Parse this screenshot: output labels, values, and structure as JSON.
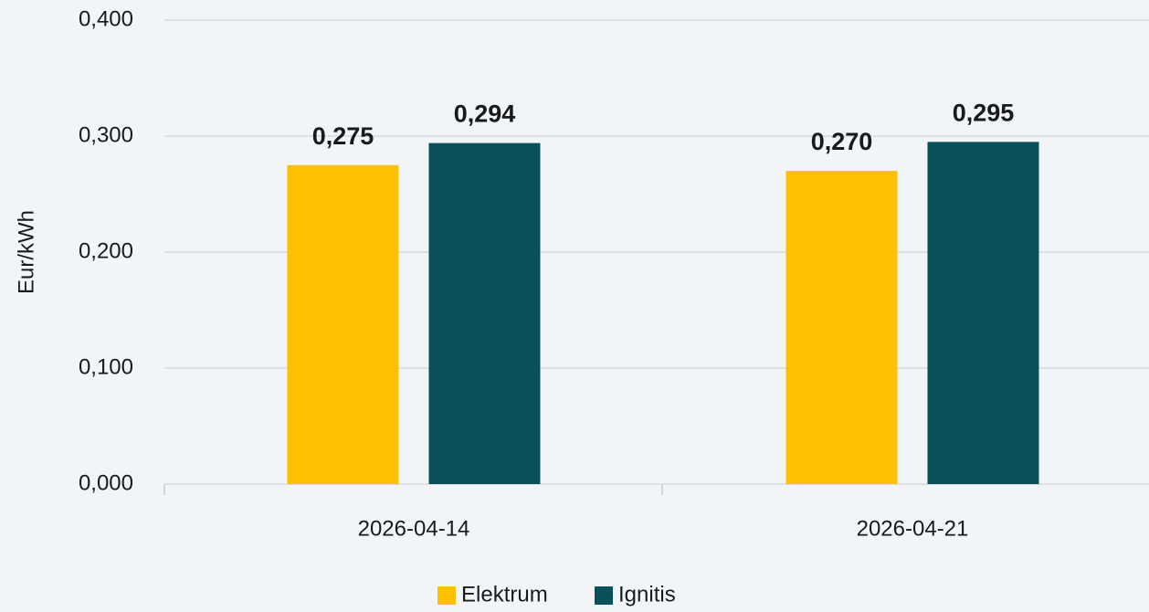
{
  "chart_data": {
    "type": "bar",
    "y_label": "Eur/kWh",
    "categories": [
      "2026-04-14",
      "2026-04-21"
    ],
    "series": [
      {
        "name": "Elektrum",
        "color": "#ffc000",
        "values": [
          0.275,
          0.27
        ],
        "value_labels": [
          "0,275",
          "0,270"
        ]
      },
      {
        "name": "Ignitis",
        "color": "#0a5058",
        "values": [
          0.294,
          0.295
        ],
        "value_labels": [
          "0,294",
          "0,295"
        ]
      }
    ],
    "ylim": [
      0,
      0.4
    ],
    "yticks": [
      {
        "value": 0,
        "label": "0,000"
      },
      {
        "value": 0.1,
        "label": "0,100"
      },
      {
        "value": 0.2,
        "label": "0,200"
      },
      {
        "value": 0.3,
        "label": "0,300"
      },
      {
        "value": 0.4,
        "label": "0,400"
      }
    ],
    "grid": true,
    "legend": "bottom"
  }
}
